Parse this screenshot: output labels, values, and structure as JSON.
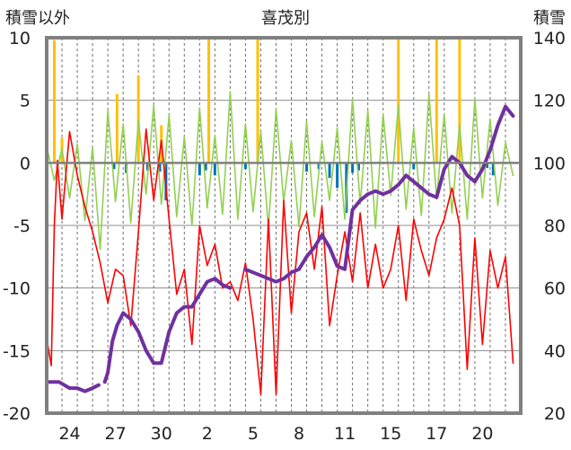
{
  "chart_data": {
    "type": "line",
    "title": "喜茂別",
    "ylabel_left": "積雪以外",
    "ylabel_right": "積雪",
    "ylim_left": [
      -20,
      10
    ],
    "ylim_right": [
      20,
      140
    ],
    "yticks_left": [
      10,
      5,
      0,
      -5,
      -10,
      -15,
      -20
    ],
    "yticks_right": [
      140,
      120,
      100,
      80,
      60,
      40,
      20
    ],
    "xlim": [
      0,
      31
    ],
    "xticks": [
      {
        "pos": 1.5,
        "label": "24"
      },
      {
        "pos": 4.5,
        "label": "27"
      },
      {
        "pos": 7.5,
        "label": "30"
      },
      {
        "pos": 10.5,
        "label": "2"
      },
      {
        "pos": 13.5,
        "label": "5"
      },
      {
        "pos": 16.5,
        "label": "8"
      },
      {
        "pos": 19.5,
        "label": "11"
      },
      {
        "pos": 22.5,
        "label": "15"
      },
      {
        "pos": 25.5,
        "label": "17"
      },
      {
        "pos": 28.5,
        "label": "20"
      }
    ],
    "grid": true,
    "series": [
      {
        "key": "temp_change",
        "axis": "left",
        "kind": "line",
        "color": "#92d050",
        "width": 1.6,
        "x": [
          0.0,
          0.5,
          1.0,
          1.5,
          2.0,
          2.5,
          3.0,
          3.5,
          4.0,
          4.5,
          5.0,
          5.5,
          6.0,
          6.5,
          7.0,
          7.5,
          8.0,
          8.5,
          9.0,
          9.5,
          10.0,
          10.5,
          11.0,
          11.5,
          12.0,
          12.5,
          13.0,
          13.5,
          14.0,
          14.5,
          15.0,
          15.5,
          16.0,
          16.5,
          17.0,
          17.5,
          18.0,
          18.5,
          19.0,
          19.5,
          20.0,
          20.5,
          21.0,
          21.5,
          22.0,
          22.5,
          23.0,
          23.5,
          24.0,
          24.5,
          25.0,
          25.5,
          26.0,
          26.5,
          27.0,
          27.5,
          28.0,
          28.5,
          29.0,
          29.5,
          30.0,
          30.5
        ],
        "y": [
          1.3,
          -1.4,
          1.1,
          -2.8,
          1.5,
          -4.6,
          1.2,
          -6.9,
          4.2,
          -3.1,
          3.1,
          -4.8,
          3.4,
          -2.5,
          4.6,
          -3.3,
          3.8,
          -4.3,
          2.1,
          -5.0,
          4.4,
          -3.6,
          2.2,
          -4.1,
          5.7,
          -4.5,
          3.1,
          -3.9,
          2.5,
          -5.2,
          4.3,
          -3.1,
          1.8,
          -5.1,
          3.3,
          -4.3,
          1.7,
          -3.0,
          2.8,
          -4.5,
          5.1,
          -3.3,
          4.2,
          -5.2,
          3.9,
          -2.6,
          4.6,
          -3.7,
          2.8,
          -4.2,
          5.5,
          -2.9,
          3.9,
          -4.0,
          3.1,
          -4.5,
          5.1,
          -2.8,
          3.5,
          -3.4,
          1.6,
          -1.0
        ]
      },
      {
        "key": "temp",
        "axis": "left",
        "kind": "line",
        "color": "#ff0000",
        "width": 1.6,
        "x": [
          0.0,
          0.3,
          0.5,
          0.7,
          1.0,
          1.5,
          2.0,
          2.5,
          3.0,
          3.5,
          4.0,
          4.5,
          5.0,
          5.5,
          6.0,
          6.5,
          7.0,
          7.5,
          8.0,
          8.5,
          9.0,
          9.5,
          10.0,
          10.5,
          11.0,
          11.5,
          12.0,
          12.5,
          13.0,
          13.5,
          14.0,
          14.5,
          15.0,
          15.5,
          16.0,
          16.5,
          17.0,
          17.5,
          18.0,
          18.5,
          19.0,
          19.5,
          20.0,
          20.5,
          21.0,
          21.5,
          22.0,
          22.5,
          23.0,
          23.5,
          24.0,
          24.5,
          25.0,
          25.5,
          26.0,
          26.5,
          27.0,
          27.5,
          28.0,
          28.5,
          29.0,
          29.5,
          30.0,
          30.5
        ],
        "y": [
          -14.0,
          -16.2,
          -5.0,
          0.2,
          -4.5,
          2.5,
          -1.0,
          -3.5,
          -5.5,
          -8.0,
          -11.2,
          -8.5,
          -9.0,
          -13.0,
          -5.5,
          2.7,
          -3.0,
          1.8,
          -4.5,
          -10.5,
          -8.5,
          -14.5,
          -5.0,
          -8.2,
          -6.5,
          -10.0,
          -9.5,
          -11.0,
          -8.0,
          -12.5,
          -18.5,
          -4.5,
          -18.5,
          -3.0,
          -12.0,
          -5.5,
          -4.0,
          -8.5,
          -3.5,
          -13.0,
          -9.0,
          -5.5,
          -9.5,
          -4.0,
          -10.0,
          -6.5,
          -10.0,
          -8.5,
          -5.0,
          -11.0,
          -4.5,
          -7.0,
          -9.0,
          -6.0,
          -4.5,
          -2.0,
          -5.0,
          -16.5,
          -6.0,
          -14.5,
          -7.0,
          -10.0,
          -7.5,
          -16.0
        ]
      },
      {
        "key": "snow_depth",
        "axis": "right",
        "kind": "line",
        "color": "#7030a0",
        "width": 4,
        "x": [
          0.0,
          0.8,
          1.5,
          2.0,
          2.5,
          3.0,
          3.4,
          3.6,
          3.8,
          4.0,
          4.3,
          4.6,
          5.0,
          5.5,
          6.0,
          6.5,
          7.0,
          7.5,
          8.0,
          8.5,
          9.0,
          9.5,
          10.0,
          10.5,
          11.0,
          11.5,
          12.0,
          12.5,
          13.0,
          13.5,
          14.0,
          14.5,
          15.0,
          15.5,
          16.0,
          16.5,
          17.0,
          17.5,
          18.0,
          18.5,
          19.0,
          19.5,
          20.0,
          20.5,
          21.0,
          21.5,
          22.0,
          22.5,
          23.0,
          23.5,
          24.0,
          24.5,
          25.0,
          25.5,
          26.0,
          26.5,
          27.0,
          27.5,
          28.0,
          28.5,
          29.0,
          29.5,
          30.0,
          30.5
        ],
        "y": [
          30,
          30,
          28,
          28,
          27,
          28,
          29,
          null,
          30,
          33,
          43,
          48,
          52,
          50,
          46,
          40,
          36,
          36,
          46,
          52,
          54,
          54,
          58,
          62,
          63,
          61,
          60,
          null,
          66,
          65,
          64,
          63,
          62,
          63,
          65,
          66,
          70,
          73,
          77,
          73,
          67,
          66,
          85,
          88,
          90,
          91,
          90,
          91,
          93,
          96,
          94,
          92,
          90,
          89,
          98,
          102,
          100,
          96,
          94,
          98,
          104,
          112,
          118,
          115
        ]
      },
      {
        "key": "precip",
        "axis": "left",
        "kind": "bar",
        "color": "#ffc000",
        "x": [
          0.5,
          1.0,
          4.6,
          6.0,
          7.5,
          10.6,
          13.8,
          23.0,
          25.5,
          27.0
        ],
        "y": [
          9.8,
          2.0,
          5.5,
          7.0,
          3.0,
          10.0,
          10.0,
          10.0,
          10.0,
          10.0
        ]
      },
      {
        "key": "snow_change",
        "axis": "left",
        "kind": "bar",
        "color": "#0070c0",
        "x": [
          4.4,
          5.2,
          6.6,
          7.4,
          7.8,
          10.0,
          10.4,
          11.0,
          13.0,
          17.0,
          17.8,
          18.5,
          19.0,
          19.6,
          20.0,
          20.4,
          24.0,
          28.8,
          29.2
        ],
        "y": [
          -0.5,
          -0.8,
          -0.6,
          -0.7,
          -3.0,
          -1.0,
          -0.6,
          -1.0,
          -0.5,
          -0.7,
          -0.5,
          -1.2,
          -2.0,
          -4.0,
          -0.8,
          -0.6,
          -0.5,
          -0.4,
          -1.0
        ]
      }
    ]
  }
}
